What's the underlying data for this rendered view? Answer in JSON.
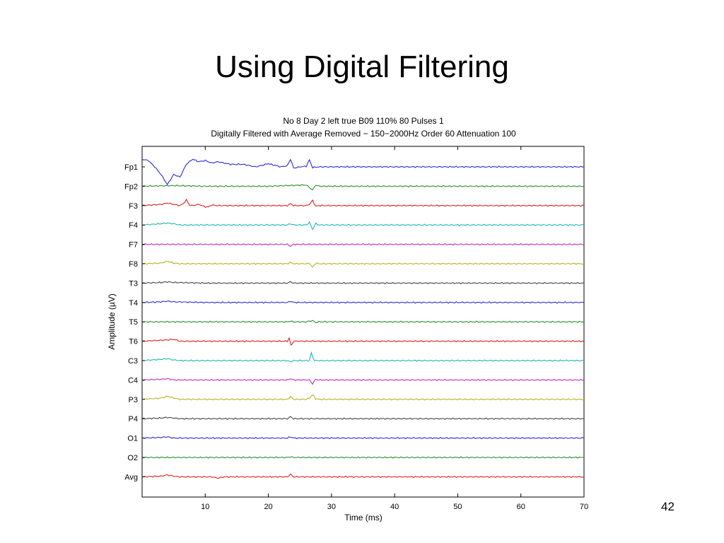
{
  "slide": {
    "title": "Using Digital Filtering",
    "page_number": "42"
  },
  "chart_data": {
    "type": "line",
    "title": "No 8 Day 2 left true B09 110% 80 Pulses 1",
    "subtitle": "Digitally Filtered with Average Removed − 150−2000Hz Order 60 Attenuation 100",
    "xlabel": "Time (ms)",
    "ylabel": "Amplitude (µV)",
    "xlim": [
      0,
      70
    ],
    "x_ticks": [
      10,
      20,
      30,
      40,
      50,
      60,
      70
    ],
    "grid": false,
    "channels": [
      {
        "name": "Fp1",
        "color": "#2b2bd6"
      },
      {
        "name": "Fp2",
        "color": "#2e8b2e"
      },
      {
        "name": "F3",
        "color": "#e02020"
      },
      {
        "name": "F4",
        "color": "#1fb5b5"
      },
      {
        "name": "F7",
        "color": "#c02ac0"
      },
      {
        "name": "F8",
        "color": "#b5b520"
      },
      {
        "name": "T3",
        "color": "#444444"
      },
      {
        "name": "T4",
        "color": "#2b2bd6"
      },
      {
        "name": "T5",
        "color": "#2e8b2e"
      },
      {
        "name": "T6",
        "color": "#e02020"
      },
      {
        "name": "C3",
        "color": "#1fb5b5"
      },
      {
        "name": "C4",
        "color": "#c02ac0"
      },
      {
        "name": "P3",
        "color": "#b5b520"
      },
      {
        "name": "P4",
        "color": "#444444"
      },
      {
        "name": "O1",
        "color": "#2b2bd6"
      },
      {
        "name": "O2",
        "color": "#2e8b2e"
      },
      {
        "name": "Avg",
        "color": "#e02020"
      }
    ],
    "series": [
      {
        "name": "Fp1",
        "x": [
          0,
          1,
          2,
          3,
          4,
          5,
          6,
          7,
          8,
          9,
          10,
          11,
          12,
          14,
          16,
          18,
          20,
          22,
          23,
          23.5,
          24,
          25,
          26,
          26.5,
          27,
          28,
          30,
          40,
          50,
          60,
          70
        ],
        "y": [
          0.6,
          0.5,
          0.0,
          -0.6,
          -1.4,
          -0.6,
          -0.8,
          0.2,
          0.6,
          0.4,
          0.5,
          0.3,
          0.4,
          0.2,
          0.2,
          0.0,
          0.25,
          0.0,
          0.1,
          0.6,
          -0.1,
          0.0,
          0.05,
          0.55,
          -0.05,
          0.0,
          0.0,
          0.0,
          0.0,
          0.0,
          0.0
        ]
      },
      {
        "name": "Fp2",
        "x": [
          0,
          5,
          10,
          20,
          26,
          27,
          27.5,
          28,
          30,
          70
        ],
        "y": [
          0,
          0.05,
          0,
          0,
          0.1,
          -0.3,
          0.1,
          0,
          0,
          0
        ]
      },
      {
        "name": "F3",
        "x": [
          0,
          3,
          4,
          5,
          6,
          6.5,
          7,
          7.5,
          8,
          9,
          10,
          10.5,
          11,
          12,
          20,
          23,
          23.5,
          24,
          26,
          26.5,
          27,
          27.5,
          28,
          30,
          70
        ],
        "y": [
          0,
          0.1,
          0.2,
          0.1,
          0,
          0.15,
          0.45,
          0.05,
          0,
          0.1,
          -0.1,
          -0.1,
          0.05,
          0,
          0,
          0,
          0.15,
          0,
          0,
          0.1,
          0.4,
          -0.05,
          0,
          0,
          0
        ]
      },
      {
        "name": "F4",
        "x": [
          0,
          3,
          4,
          5,
          6,
          10,
          20,
          23,
          23.5,
          24,
          26,
          26.5,
          27,
          27.5,
          28,
          30,
          70
        ],
        "y": [
          0,
          0.1,
          0.15,
          0.1,
          0,
          0,
          0,
          0,
          0.1,
          0,
          0,
          0.2,
          -0.35,
          0.1,
          0,
          0,
          0
        ]
      },
      {
        "name": "F7",
        "x": [
          0,
          15,
          23,
          23.5,
          24,
          30,
          70
        ],
        "y": [
          0,
          0,
          0,
          -0.15,
          0,
          0,
          0
        ]
      },
      {
        "name": "F8",
        "x": [
          0,
          3,
          4,
          5,
          6,
          20,
          23,
          23.5,
          24,
          26,
          26.5,
          27,
          27.5,
          28,
          70
        ],
        "y": [
          0,
          0.05,
          0.2,
          0.05,
          0,
          0,
          0,
          0.1,
          0,
          0,
          0.05,
          -0.3,
          0.05,
          0,
          0
        ]
      },
      {
        "name": "T3",
        "x": [
          0,
          3,
          4,
          5,
          10,
          23,
          23.5,
          24,
          70
        ],
        "y": [
          0,
          0.05,
          0.1,
          0.05,
          0,
          0,
          0.1,
          0,
          0
        ]
      },
      {
        "name": "T4",
        "x": [
          0,
          3,
          4,
          5,
          10,
          23,
          23.5,
          24,
          70
        ],
        "y": [
          0,
          0.05,
          0.1,
          0.05,
          0,
          0,
          0.1,
          0,
          0
        ]
      },
      {
        "name": "T5",
        "x": [
          0,
          23,
          23.5,
          24,
          26,
          27,
          27.5,
          28,
          70
        ],
        "y": [
          0,
          0,
          0.05,
          0,
          0,
          0.1,
          -0.05,
          0,
          0
        ]
      },
      {
        "name": "T6",
        "x": [
          0,
          4,
          5,
          6,
          23,
          23.3,
          23.6,
          24,
          70
        ],
        "y": [
          0,
          0.1,
          0.15,
          0,
          0,
          0.25,
          -0.35,
          0,
          0
        ]
      },
      {
        "name": "C3",
        "x": [
          0,
          3,
          4,
          5,
          6,
          23,
          23.5,
          24,
          26.5,
          26.8,
          27,
          27.3,
          28,
          70
        ],
        "y": [
          0,
          0.1,
          0.15,
          0.05,
          0,
          0,
          -0.1,
          0,
          0,
          0.6,
          0.3,
          0,
          0,
          0
        ]
      },
      {
        "name": "C4",
        "x": [
          0,
          3,
          4,
          5,
          23,
          23.5,
          24,
          26.5,
          27,
          27.5,
          28,
          70
        ],
        "y": [
          0,
          0.05,
          0.1,
          0,
          0,
          0.1,
          0,
          0,
          -0.3,
          0.05,
          0,
          0
        ]
      },
      {
        "name": "P3",
        "x": [
          0,
          3,
          4,
          5,
          6,
          23,
          23.5,
          24,
          26,
          26.5,
          27,
          27.5,
          28,
          70
        ],
        "y": [
          0,
          0.1,
          0.25,
          0.1,
          0,
          0,
          0.2,
          0,
          0,
          0.1,
          0.35,
          0.05,
          0,
          0
        ]
      },
      {
        "name": "P4",
        "x": [
          0,
          3,
          4,
          5,
          6,
          23,
          23.5,
          24,
          70
        ],
        "y": [
          0,
          0.05,
          0.1,
          0.05,
          0,
          0,
          0.15,
          0,
          0
        ]
      },
      {
        "name": "O1",
        "x": [
          0,
          3,
          4,
          5,
          23,
          23.5,
          24,
          70
        ],
        "y": [
          0,
          0.05,
          0.1,
          0,
          0,
          0.1,
          0,
          0
        ]
      },
      {
        "name": "O2",
        "x": [
          0,
          23,
          23.5,
          24,
          70
        ],
        "y": [
          0,
          0,
          0.05,
          0,
          0
        ]
      },
      {
        "name": "Avg",
        "x": [
          0,
          3,
          4,
          5,
          6,
          11,
          12,
          13,
          23,
          23.5,
          24,
          70
        ],
        "y": [
          0,
          0.05,
          0.15,
          0.05,
          0,
          0,
          -0.1,
          0,
          0,
          0.2,
          0,
          0
        ]
      }
    ]
  }
}
